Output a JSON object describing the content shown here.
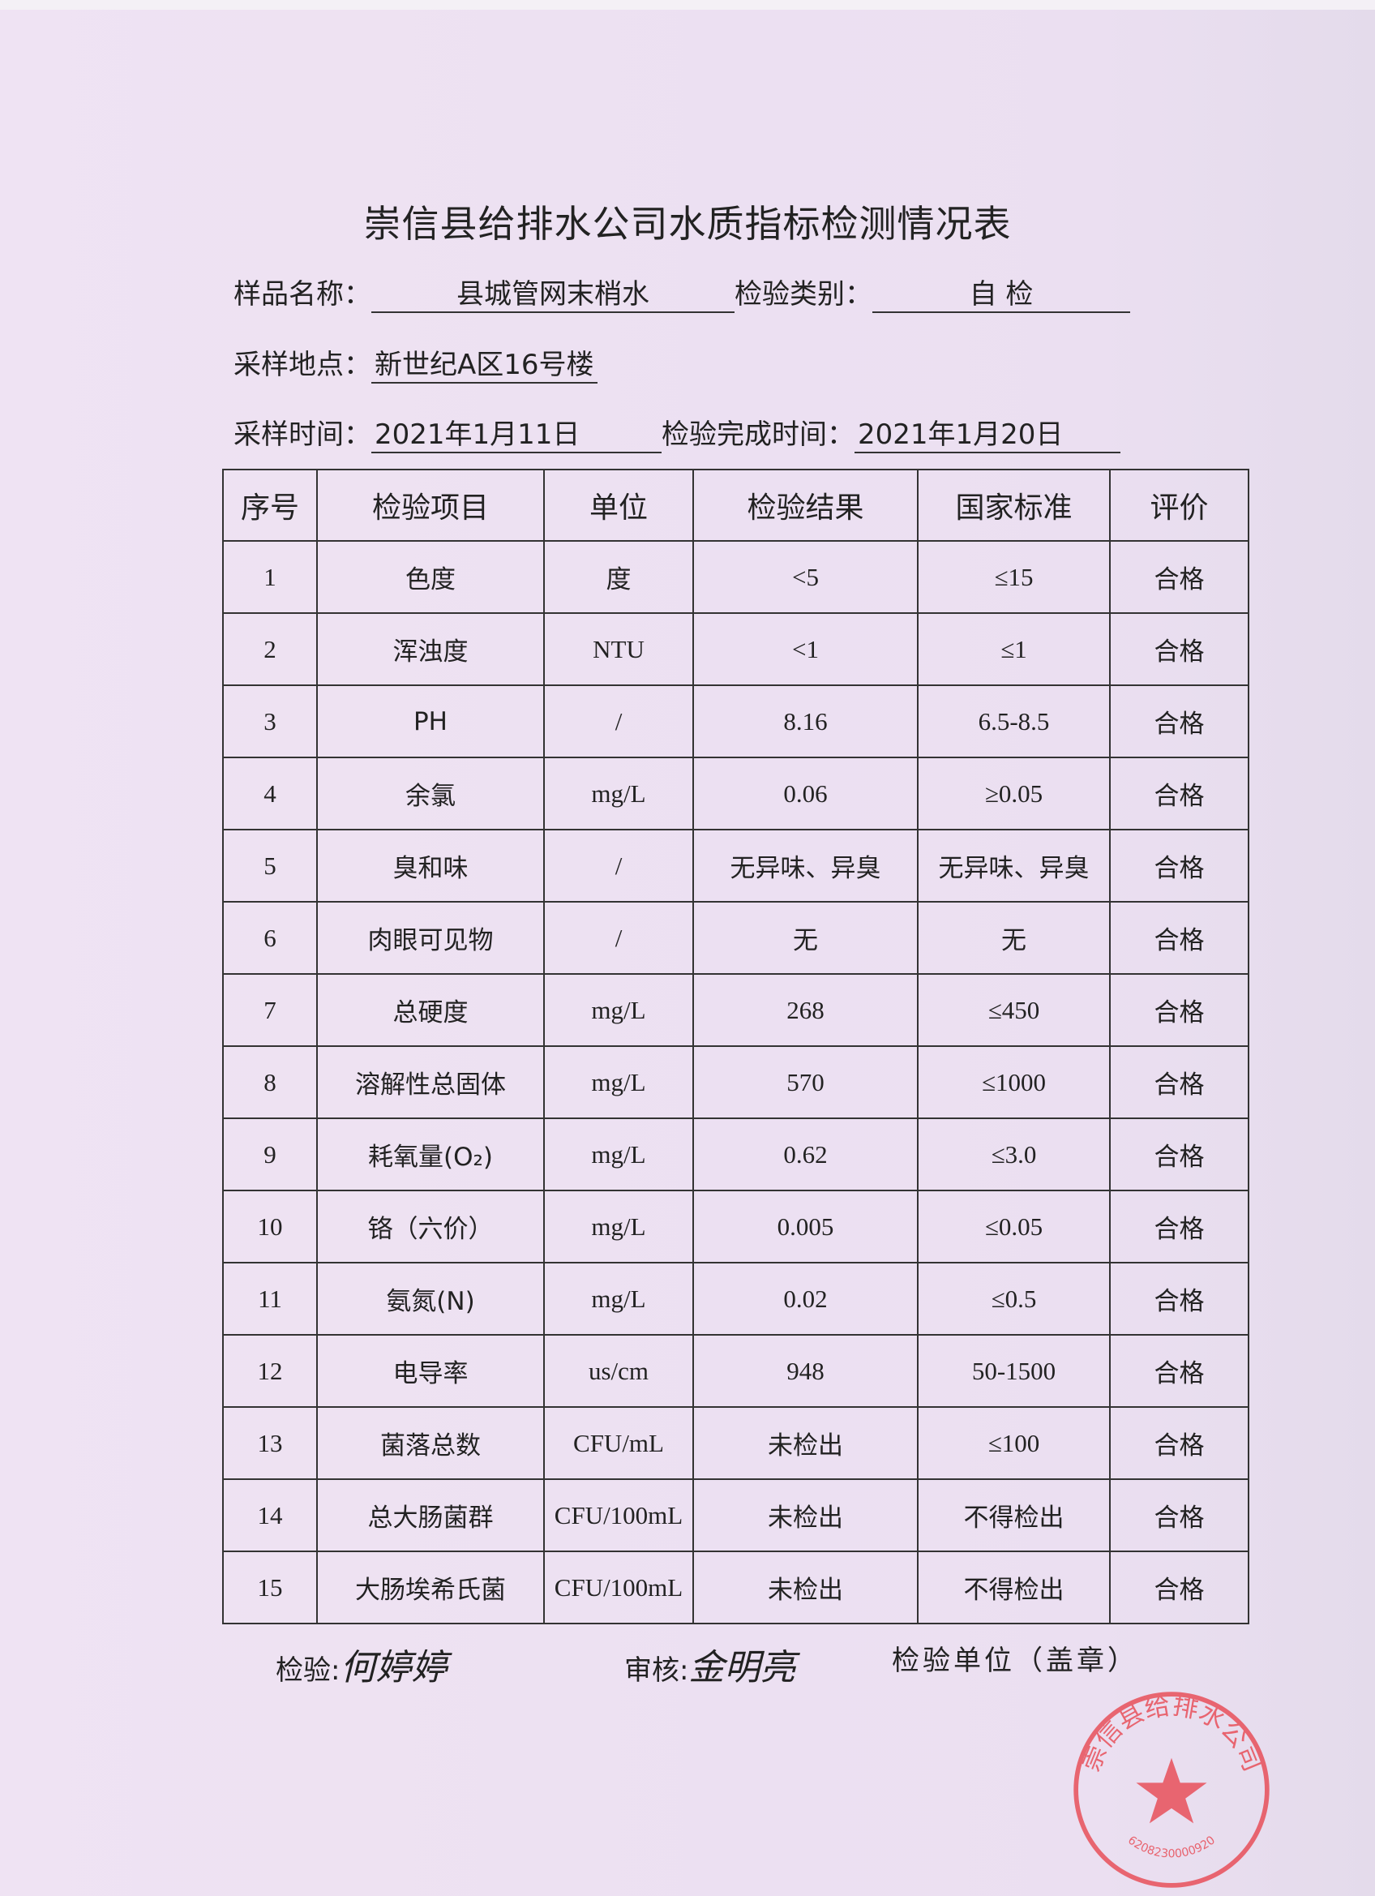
{
  "title": "崇信县给排水公司水质指标检测情况表",
  "fields": {
    "sample_name_label": "样品名称：",
    "sample_name": "县城管网末梢水",
    "test_type_label": "检验类别：",
    "test_type": "自 检",
    "location_label": "采样地点：",
    "location": "新世纪A区16号楼",
    "sample_time_label": "采样时间：",
    "sample_time": "2021年1月11日",
    "complete_time_label": "检验完成时间：",
    "complete_time": "2021年1月20日"
  },
  "table": {
    "headers": [
      "序号",
      "检验项目",
      "单位",
      "检验结果",
      "国家标准",
      "评价"
    ],
    "rows": [
      [
        "1",
        "色度",
        "度",
        "<5",
        "≤15",
        "合格"
      ],
      [
        "2",
        "浑浊度",
        "NTU",
        "<1",
        "≤1",
        "合格"
      ],
      [
        "3",
        "PH",
        "/",
        "8.16",
        "6.5-8.5",
        "合格"
      ],
      [
        "4",
        "余氯",
        "mg/L",
        "0.06",
        "≥0.05",
        "合格"
      ],
      [
        "5",
        "臭和味",
        "/",
        "无异味、异臭",
        "无异味、异臭",
        "合格"
      ],
      [
        "6",
        "肉眼可见物",
        "/",
        "无",
        "无",
        "合格"
      ],
      [
        "7",
        "总硬度",
        "mg/L",
        "268",
        "≤450",
        "合格"
      ],
      [
        "8",
        "溶解性总固体",
        "mg/L",
        "570",
        "≤1000",
        "合格"
      ],
      [
        "9",
        "耗氧量(O₂)",
        "mg/L",
        "0.62",
        "≤3.0",
        "合格"
      ],
      [
        "10",
        "铬（六价）",
        "mg/L",
        "0.005",
        "≤0.05",
        "合格"
      ],
      [
        "11",
        "氨氮(N)",
        "mg/L",
        "0.02",
        "≤0.5",
        "合格"
      ],
      [
        "12",
        "电导率",
        "us/cm",
        "948",
        "50-1500",
        "合格"
      ],
      [
        "13",
        "菌落总数",
        "CFU/mL",
        "未检出",
        "≤100",
        "合格"
      ],
      [
        "14",
        "总大肠菌群",
        "CFU/100mL",
        "未检出",
        "不得检出",
        "合格"
      ],
      [
        "15",
        "大肠埃希氏菌",
        "CFU/100mL",
        "未检出",
        "不得检出",
        "合格"
      ]
    ]
  },
  "footer": {
    "inspector_label": "检验:",
    "inspector_signature": "何婷婷",
    "reviewer_label": "审核:",
    "reviewer_signature": "金明亮",
    "unit_label": "检验单位（盖章）"
  },
  "stamp": {
    "text": "崇信县给排水公司",
    "number": "6208230000920",
    "color": "#e8505a"
  }
}
